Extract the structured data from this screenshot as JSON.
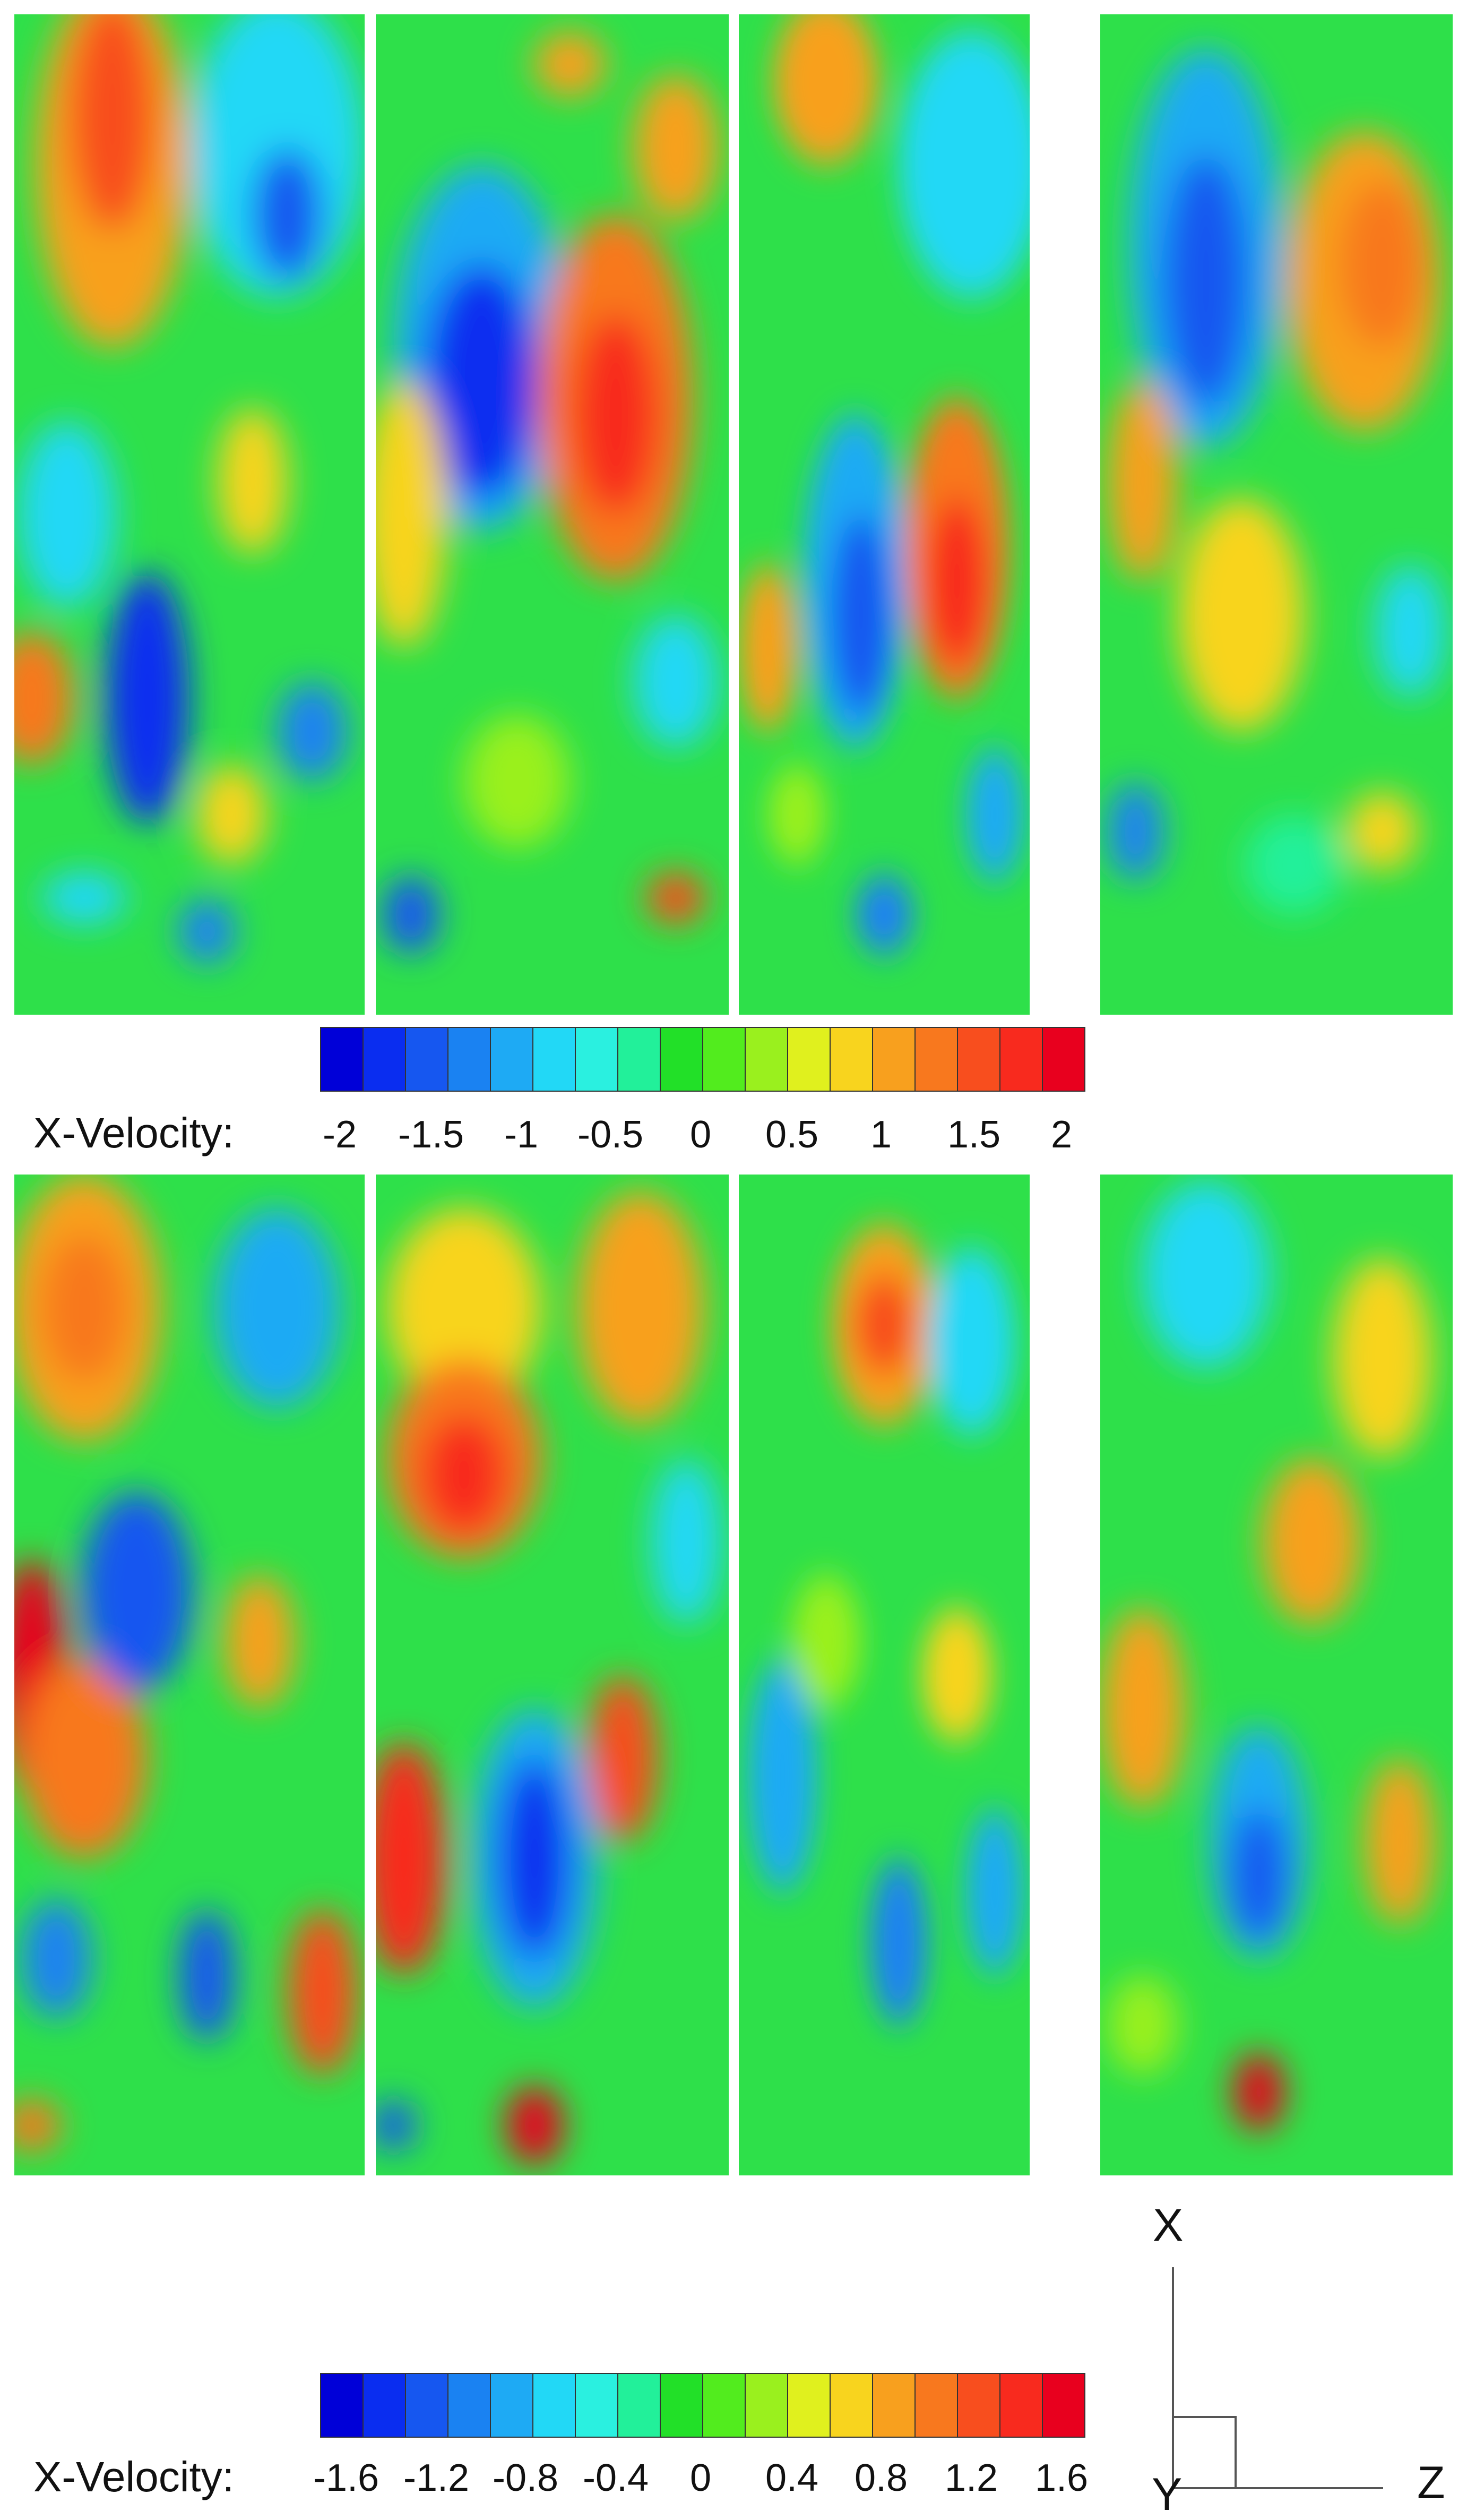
{
  "top_row": {
    "colorbar": {
      "label": "X-Velocity:",
      "ticks": [
        "-2",
        "-1.5",
        "-1",
        "-0.5",
        "0",
        "0.5",
        "1",
        "1.5",
        "2"
      ],
      "colors": [
        "#0000d8",
        "#0a2df0",
        "#1657f0",
        "#1a82f2",
        "#1eaaf4",
        "#22d8f6",
        "#2af0e0",
        "#22f09a",
        "#22e028",
        "#52ec1e",
        "#9af01e",
        "#e0f01e",
        "#f8d41e",
        "#f8a01e",
        "#f8781e",
        "#f84e1e",
        "#f82a1e",
        "#e8001e"
      ],
      "range": [
        -2,
        2
      ]
    }
  },
  "bottom_row": {
    "colorbar": {
      "label": "X-Velocity:",
      "ticks": [
        "-1.6",
        "-1.2",
        "-0.8",
        "-0.4",
        "0",
        "0.4",
        "0.8",
        "1.2",
        "1.6"
      ],
      "colors": [
        "#0000d8",
        "#0a2df0",
        "#1657f0",
        "#1a82f2",
        "#1eaaf4",
        "#22d8f6",
        "#2af0e0",
        "#22f09a",
        "#22e028",
        "#52ec1e",
        "#9af01e",
        "#e0f01e",
        "#f8d41e",
        "#f8a01e",
        "#f8781e",
        "#f84e1e",
        "#f82a1e",
        "#e8001e"
      ],
      "range": [
        -1.6,
        1.6
      ]
    }
  },
  "axes": {
    "x_label": "X",
    "y_label": "Y",
    "z_label": "Z"
  }
}
